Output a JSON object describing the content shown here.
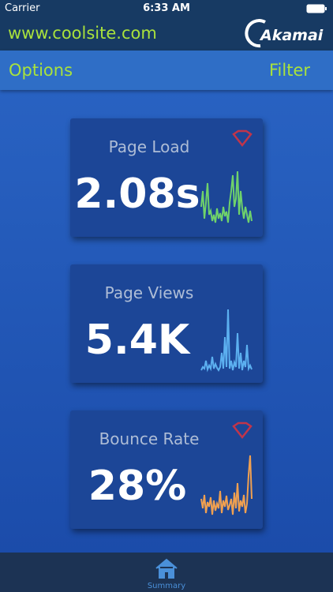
{
  "status_bar": {
    "carrier": "Carrier",
    "time": "6:33 AM"
  },
  "header": {
    "site": "www.coolsite.com",
    "brand": "Akamai"
  },
  "nav": {
    "left": "Options",
    "right": "Filter"
  },
  "cards": [
    {
      "title": "Page Load",
      "value": "2.08s"
    },
    {
      "title": "Page Views",
      "value": "5.4K"
    },
    {
      "title": "Bounce Rate",
      "value": "28%"
    }
  ],
  "tab_bar": {
    "tab": "Summary"
  }
}
